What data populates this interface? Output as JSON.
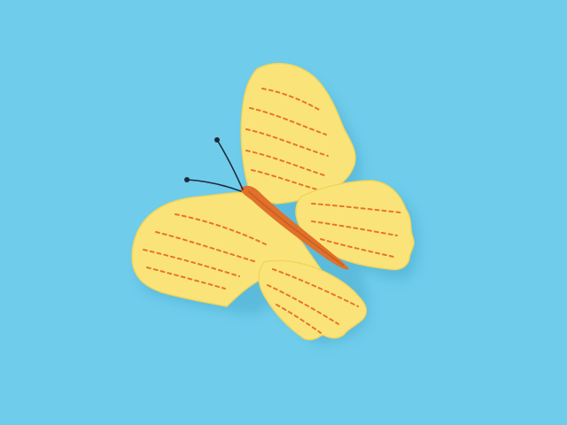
{
  "scene": {
    "subject": "butterfly-icon",
    "colors": {
      "background": "#6FCCEB",
      "wing_fill": "#FAE47A",
      "wing_shade": "#F1D55C",
      "stitch": "#E8742A",
      "body": "#E0702A",
      "body_dark": "#B9541C",
      "antenna": "#1E2A3A",
      "shadow": "#3A9CC0"
    }
  }
}
